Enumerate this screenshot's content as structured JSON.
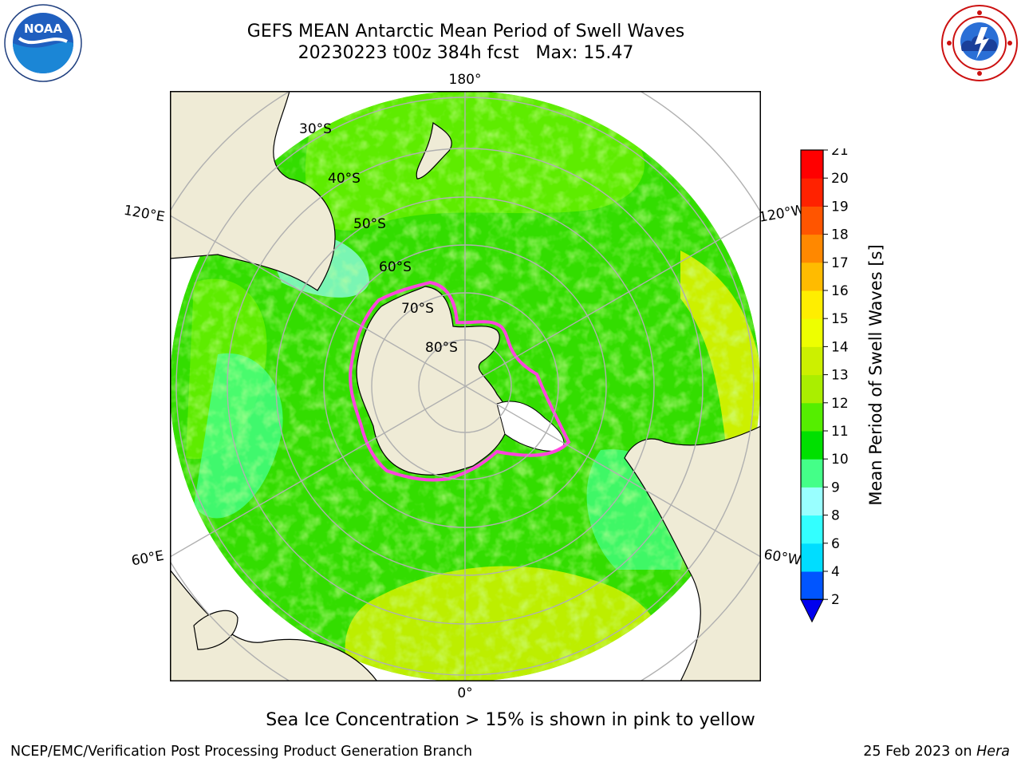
{
  "title": {
    "line1": "GEFS MEAN Antarctic Mean Period of Swell Waves",
    "line2": "20230223 t00z 384h fcst   Max: 15.47"
  },
  "logos": {
    "left": {
      "text": "NOAA",
      "icon": "noaa-logo"
    },
    "right": {
      "icon": "nws-logo"
    }
  },
  "map": {
    "projection": "south-polar-stereographic",
    "colors": {
      "land": "#efebd6",
      "ocean_base": "#33dd00",
      "ice_edge": "#ff44dd",
      "frame": "#000000",
      "grid": "#b0b0b0"
    },
    "lon_labels": [
      "180°",
      "120°E",
      "120°W",
      "60°E",
      "60°W",
      "0°"
    ],
    "lat_labels": [
      "30°S",
      "40°S",
      "50°S",
      "60°S",
      "70°S",
      "80°S"
    ]
  },
  "colorbar": {
    "label": "Mean Period of Swell Waves [s]",
    "ticks": [
      "2",
      "4",
      "6",
      "8",
      "9",
      "10",
      "11",
      "12",
      "13",
      "14",
      "15",
      "16",
      "17",
      "18",
      "19",
      "20",
      "21"
    ],
    "colors": [
      "#0055ff",
      "#00ddff",
      "#33ffff",
      "#99ffff",
      "#44ff88",
      "#00e000",
      "#55ee00",
      "#aaee00",
      "#ccf000",
      "#eeff00",
      "#ffee00",
      "#ffbb00",
      "#ff8800",
      "#ff5500",
      "#ff2200",
      "#ff0000"
    ],
    "extend_color": "#0000ee"
  },
  "ice_note": "Sea Ice Concentration > 15% is shown in pink to yellow",
  "footer": {
    "left": "NCEP/EMC/Verification Post Processing Product Generation Branch",
    "right_date": "25 Feb 2023 on ",
    "right_host": "Hera"
  }
}
